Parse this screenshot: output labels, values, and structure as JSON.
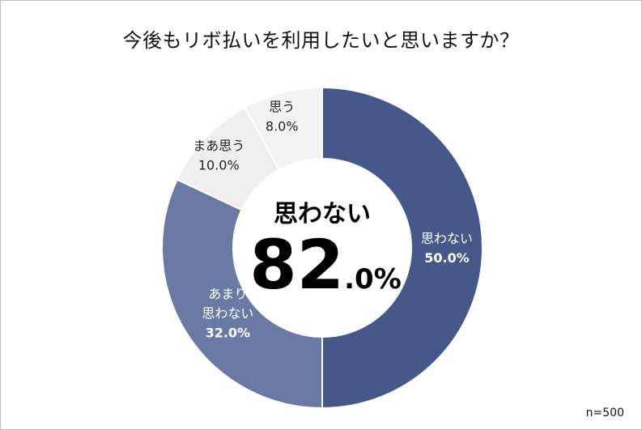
{
  "chart_data": {
    "type": "pie",
    "variant": "donut",
    "title": "今後もリボ払いを利用したいと思いますか？",
    "categories": [
      "思わない",
      "あまり思わない",
      "まあ思う",
      "思う"
    ],
    "values": [
      50.0,
      32.0,
      10.0,
      8.0
    ],
    "value_labels": [
      "50.0%",
      "32.0%",
      "10.0%",
      "8.0%"
    ],
    "slice_labels": [
      [
        "思わない"
      ],
      [
        "あまり",
        "思わない"
      ],
      [
        "まあ思う"
      ],
      [
        "思う"
      ]
    ],
    "colors": [
      "#46578a",
      "#6b7aa4",
      "#efefef",
      "#f3f3f3"
    ],
    "label_colors": [
      "#ffffff",
      "#ffffff",
      "#222222",
      "#222222"
    ],
    "center": {
      "label": "思わない",
      "number": "82",
      "decimal": ".0%"
    },
    "sample_size": "n=500"
  }
}
